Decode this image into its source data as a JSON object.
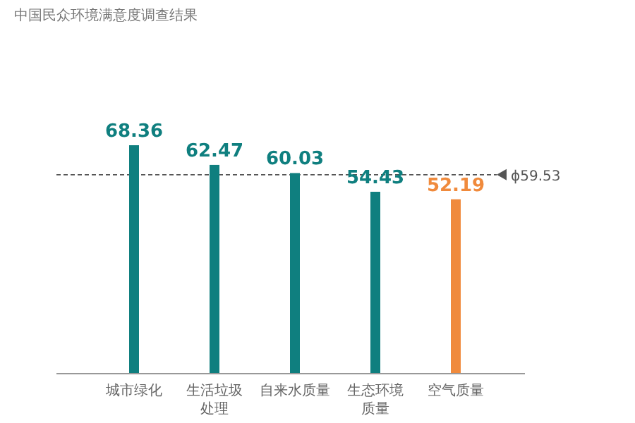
{
  "chart_data": {
    "type": "bar",
    "title": "中国民众环境满意度调查结果",
    "categories": [
      "城市绿化",
      "生活垃圾处理",
      "自来水质量",
      "生态环境质量",
      "空气质量"
    ],
    "values": [
      68.36,
      62.47,
      60.03,
      54.43,
      52.19
    ],
    "colors": [
      "#0f7f7f",
      "#0f7f7f",
      "#0f7f7f",
      "#0f7f7f",
      "#f08a3c"
    ],
    "data_labels": true,
    "ref_lines": [
      {
        "axis": "y",
        "value": 59.53,
        "label": "ϕ59.53",
        "color": "#555555",
        "line_style": "dashed"
      }
    ]
  }
}
